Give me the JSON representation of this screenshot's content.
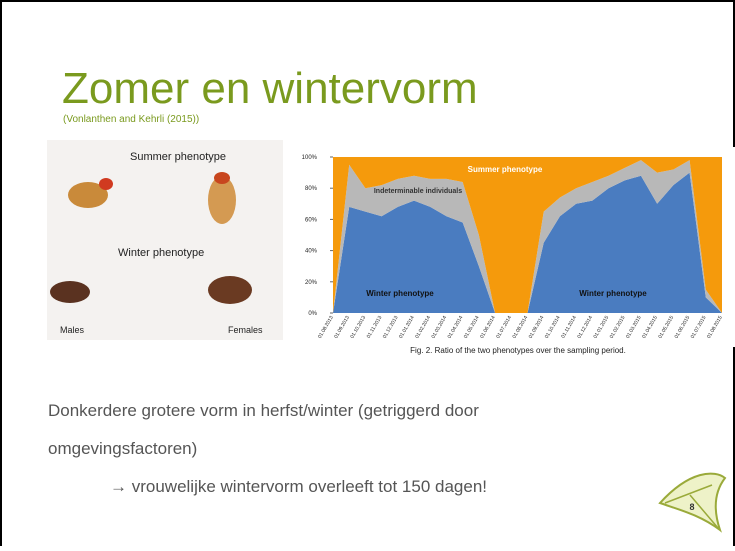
{
  "slide": {
    "title": "Zomer en wintervorm",
    "subtitle": "(Vonlanthen and Kehrli (2015))",
    "photo": {
      "summer_label": "Summer phenotype",
      "winter_label": "Winter phenotype",
      "males_label": "Males",
      "females_label": "Females"
    },
    "body": [
      "Donkerdere grotere vorm in herfst/winter (getriggerd door",
      "omgevingsfactoren)",
      "→ vrouwelijke wintervorm overleeft tot 150 dagen!"
    ],
    "page_number": "8"
  },
  "chart_data": {
    "type": "stacked-area",
    "caption": "Fig. 2. Ratio of the two phenotypes over the sampling period.",
    "categories": [
      "01.08.2013",
      "01.09.2013",
      "01.10.2013",
      "01.11.2013",
      "01.12.2013",
      "01.01.2014",
      "01.02.2014",
      "01.03.2014",
      "01.04.2014",
      "01.05.2014",
      "01.06.2014",
      "01.07.2014",
      "01.08.2014",
      "01.09.2014",
      "01.10.2014",
      "01.11.2014",
      "01.12.2014",
      "01.01.2015",
      "01.02.2015",
      "01.03.2015",
      "01.04.2015",
      "01.05.2015",
      "01.06.2015",
      "01.07.2015",
      "01.08.2015"
    ],
    "series": [
      {
        "name": "Winter phenotype",
        "color": "#4a7cc0",
        "values": [
          0,
          68,
          65,
          62,
          68,
          72,
          68,
          62,
          58,
          30,
          0,
          0,
          0,
          45,
          62,
          70,
          72,
          80,
          85,
          88,
          70,
          82,
          90,
          10,
          0
        ]
      },
      {
        "name": "Indeterminable individuals",
        "color": "#b8b8b8",
        "values": [
          0,
          27,
          15,
          20,
          18,
          16,
          18,
          24,
          26,
          20,
          0,
          0,
          0,
          20,
          12,
          10,
          12,
          8,
          8,
          10,
          20,
          10,
          8,
          5,
          0
        ]
      },
      {
        "name": "Summer phenotype",
        "color": "#f59a0c",
        "values": [
          100,
          5,
          20,
          18,
          14,
          12,
          14,
          14,
          16,
          50,
          100,
          100,
          100,
          35,
          26,
          20,
          16,
          12,
          7,
          2,
          10,
          8,
          2,
          85,
          100
        ]
      }
    ],
    "annotations": [
      "Summer phenotype",
      "Indeterminable individuals",
      "Winter phenotype",
      "Winter phenotype"
    ],
    "ylim": [
      0,
      100
    ],
    "yticks": [
      {
        "value": 0,
        "label": "0%"
      },
      {
        "value": 20,
        "label": "20%"
      },
      {
        "value": 40,
        "label": "40%"
      },
      {
        "value": 60,
        "label": "60%"
      },
      {
        "value": 80,
        "label": "80%"
      },
      {
        "value": 100,
        "label": "100%"
      }
    ]
  }
}
